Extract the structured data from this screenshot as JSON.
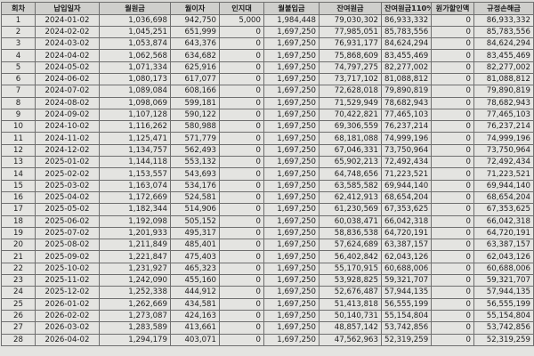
{
  "table": {
    "headers": [
      "회차",
      "납입일자",
      "월원금",
      "월이자",
      "인지대",
      "월불입금",
      "잔여원금",
      "잔여원금110%",
      "원가할인액",
      "규정손해금"
    ],
    "rows": [
      [
        "1",
        "2024-01-02",
        "1,036,698",
        "942,750",
        "5,000",
        "1,984,448",
        "79,030,302",
        "86,933,332",
        "0",
        "86,933,332"
      ],
      [
        "2",
        "2024-02-02",
        "1,045,251",
        "651,999",
        "0",
        "1,697,250",
        "77,985,051",
        "85,783,556",
        "0",
        "85,783,556"
      ],
      [
        "3",
        "2024-03-02",
        "1,053,874",
        "643,376",
        "0",
        "1,697,250",
        "76,931,177",
        "84,624,294",
        "0",
        "84,624,294"
      ],
      [
        "4",
        "2024-04-02",
        "1,062,568",
        "634,682",
        "0",
        "1,697,250",
        "75,868,609",
        "83,455,469",
        "0",
        "83,455,469"
      ],
      [
        "5",
        "2024-05-02",
        "1,071,334",
        "625,916",
        "0",
        "1,697,250",
        "74,797,275",
        "82,277,002",
        "0",
        "82,277,002"
      ],
      [
        "6",
        "2024-06-02",
        "1,080,173",
        "617,077",
        "0",
        "1,697,250",
        "73,717,102",
        "81,088,812",
        "0",
        "81,088,812"
      ],
      [
        "7",
        "2024-07-02",
        "1,089,084",
        "608,166",
        "0",
        "1,697,250",
        "72,628,018",
        "79,890,819",
        "0",
        "79,890,819"
      ],
      [
        "8",
        "2024-08-02",
        "1,098,069",
        "599,181",
        "0",
        "1,697,250",
        "71,529,949",
        "78,682,943",
        "0",
        "78,682,943"
      ],
      [
        "9",
        "2024-09-02",
        "1,107,128",
        "590,122",
        "0",
        "1,697,250",
        "70,422,821",
        "77,465,103",
        "0",
        "77,465,103"
      ],
      [
        "10",
        "2024-10-02",
        "1,116,262",
        "580,988",
        "0",
        "1,697,250",
        "69,306,559",
        "76,237,214",
        "0",
        "76,237,214"
      ],
      [
        "11",
        "2024-11-02",
        "1,125,471",
        "571,779",
        "0",
        "1,697,250",
        "68,181,088",
        "74,999,196",
        "0",
        "74,999,196"
      ],
      [
        "12",
        "2024-12-02",
        "1,134,757",
        "562,493",
        "0",
        "1,697,250",
        "67,046,331",
        "73,750,964",
        "0",
        "73,750,964"
      ],
      [
        "13",
        "2025-01-02",
        "1,144,118",
        "553,132",
        "0",
        "1,697,250",
        "65,902,213",
        "72,492,434",
        "0",
        "72,492,434"
      ],
      [
        "14",
        "2025-02-02",
        "1,153,557",
        "543,693",
        "0",
        "1,697,250",
        "64,748,656",
        "71,223,521",
        "0",
        "71,223,521"
      ],
      [
        "15",
        "2025-03-02",
        "1,163,074",
        "534,176",
        "0",
        "1,697,250",
        "63,585,582",
        "69,944,140",
        "0",
        "69,944,140"
      ],
      [
        "16",
        "2025-04-02",
        "1,172,669",
        "524,581",
        "0",
        "1,697,250",
        "62,412,913",
        "68,654,204",
        "0",
        "68,654,204"
      ],
      [
        "17",
        "2025-05-02",
        "1,182,344",
        "514,906",
        "0",
        "1,697,250",
        "61,230,569",
        "67,353,625",
        "0",
        "67,353,625"
      ],
      [
        "18",
        "2025-06-02",
        "1,192,098",
        "505,152",
        "0",
        "1,697,250",
        "60,038,471",
        "66,042,318",
        "0",
        "66,042,318"
      ],
      [
        "19",
        "2025-07-02",
        "1,201,933",
        "495,317",
        "0",
        "1,697,250",
        "58,836,538",
        "64,720,191",
        "0",
        "64,720,191"
      ],
      [
        "20",
        "2025-08-02",
        "1,211,849",
        "485,401",
        "0",
        "1,697,250",
        "57,624,689",
        "63,387,157",
        "0",
        "63,387,157"
      ],
      [
        "21",
        "2025-09-02",
        "1,221,847",
        "475,403",
        "0",
        "1,697,250",
        "56,402,842",
        "62,043,126",
        "0",
        "62,043,126"
      ],
      [
        "22",
        "2025-10-02",
        "1,231,927",
        "465,323",
        "0",
        "1,697,250",
        "55,170,915",
        "60,688,006",
        "0",
        "60,688,006"
      ],
      [
        "23",
        "2025-11-02",
        "1,242,090",
        "455,160",
        "0",
        "1,697,250",
        "53,928,825",
        "59,321,707",
        "0",
        "59,321,707"
      ],
      [
        "24",
        "2025-12-02",
        "1,252,338",
        "444,912",
        "0",
        "1,697,250",
        "52,676,487",
        "57,944,135",
        "0",
        "57,944,135"
      ],
      [
        "25",
        "2026-01-02",
        "1,262,669",
        "434,581",
        "0",
        "1,697,250",
        "51,413,818",
        "56,555,199",
        "0",
        "56,555,199"
      ],
      [
        "26",
        "2026-02-02",
        "1,273,087",
        "424,163",
        "0",
        "1,697,250",
        "50,140,731",
        "55,154,804",
        "0",
        "55,154,804"
      ],
      [
        "27",
        "2026-03-02",
        "1,283,589",
        "413,661",
        "0",
        "1,697,250",
        "48,857,142",
        "53,742,856",
        "0",
        "53,742,856"
      ],
      [
        "28",
        "2026-04-02",
        "1,294,179",
        "403,071",
        "0",
        "1,697,250",
        "47,562,963",
        "52,319,259",
        "0",
        "52,319,259"
      ]
    ]
  }
}
